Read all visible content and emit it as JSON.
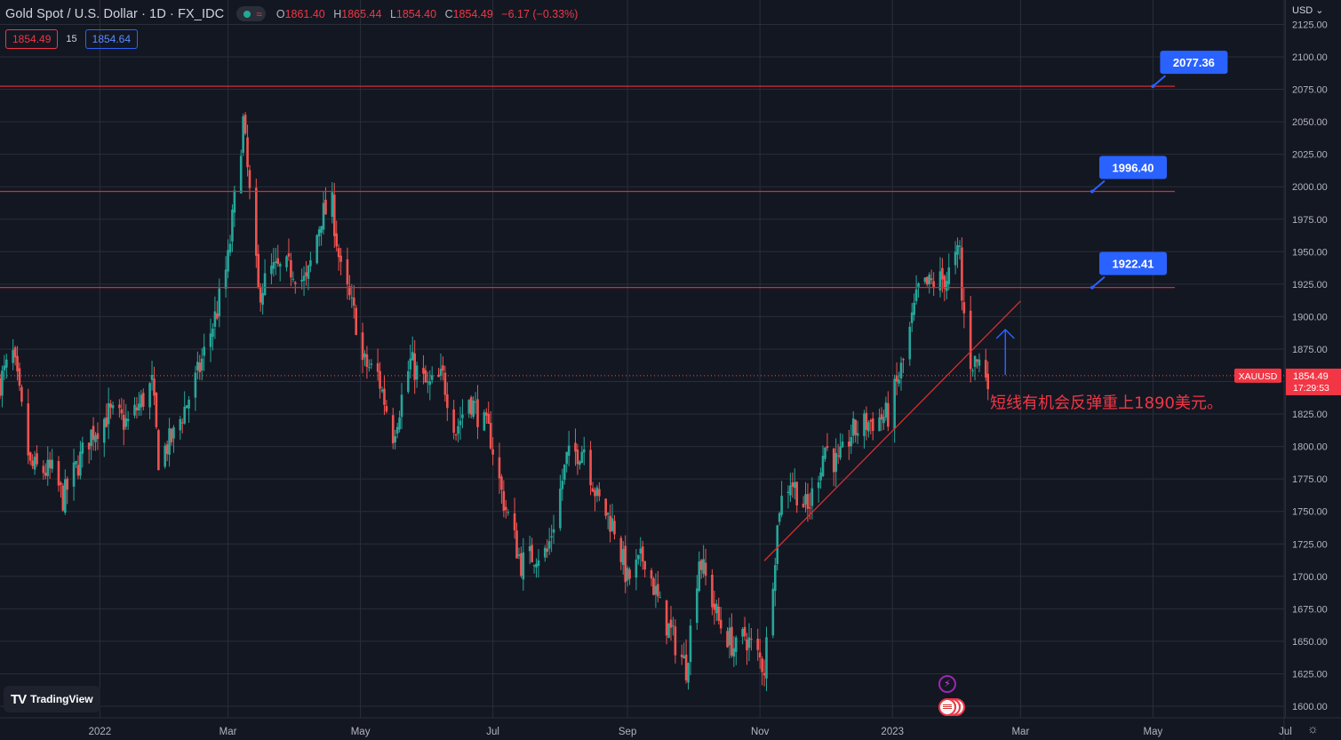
{
  "header": {
    "symbol": "Gold Spot / U.S. Dollar · 1D · FX_IDC",
    "ohlc": {
      "o_label": "O",
      "o": "1861.40",
      "h_label": "H",
      "h": "1865.44",
      "l_label": "L",
      "l": "1854.40",
      "c_label": "C",
      "c": "1854.49",
      "change": "−6.17 (−0.33%)"
    },
    "sell_price": "1854.49",
    "spread": "15",
    "buy_price": "1854.64",
    "currency": "USD"
  },
  "branding": {
    "logo_text": "TradingView"
  },
  "colors": {
    "up": "#26a69a",
    "down": "#ef5350",
    "bg": "#131722",
    "grid": "#2a2e39",
    "level_line": "#d32f2f",
    "callout": "#2962ff",
    "annotation": "#f23645"
  },
  "chart_data": {
    "type": "candlestick",
    "symbol_label": "XAUUSD",
    "last_price": 1854.49,
    "countdown": "17:29:53",
    "ylim": [
      1600,
      2125
    ],
    "yticks": [
      "2125.00",
      "2100.00",
      "2075.00",
      "2050.00",
      "2025.00",
      "2000.00",
      "1975.00",
      "1950.00",
      "1925.00",
      "1900.00",
      "1875.00",
      "1850.00",
      "1825.00",
      "1800.00",
      "1775.00",
      "1750.00",
      "1725.00",
      "1700.00",
      "1675.00",
      "1650.00",
      "1625.00",
      "1600.00"
    ],
    "xlim": [
      "2021-11-16",
      "2023-07-27"
    ],
    "xticks": [
      {
        "label": "2022",
        "date": "2022-01-01"
      },
      {
        "label": "Mar",
        "date": "2022-03-01"
      },
      {
        "label": "May",
        "date": "2022-05-01"
      },
      {
        "label": "Jul",
        "date": "2022-07-01"
      },
      {
        "label": "Sep",
        "date": "2022-09-01"
      },
      {
        "label": "Nov",
        "date": "2022-11-01"
      },
      {
        "label": "2023",
        "date": "2023-01-01"
      },
      {
        "label": "Mar",
        "date": "2023-03-01"
      },
      {
        "label": "May",
        "date": "2023-05-01"
      },
      {
        "label": "Jul",
        "date": "2023-07-01"
      }
    ],
    "anchors": [
      {
        "date": "2021-11-16",
        "price": 1850
      },
      {
        "date": "2021-11-22",
        "price": 1870
      },
      {
        "date": "2021-11-30",
        "price": 1784
      },
      {
        "date": "2021-12-10",
        "price": 1780
      },
      {
        "date": "2021-12-15",
        "price": 1760
      },
      {
        "date": "2021-12-28",
        "price": 1810
      },
      {
        "date": "2022-01-05",
        "price": 1825
      },
      {
        "date": "2022-01-14",
        "price": 1818
      },
      {
        "date": "2022-01-25",
        "price": 1848
      },
      {
        "date": "2022-01-28",
        "price": 1791
      },
      {
        "date": "2022-02-04",
        "price": 1808
      },
      {
        "date": "2022-02-15",
        "price": 1855
      },
      {
        "date": "2022-02-24",
        "price": 1905
      },
      {
        "date": "2022-03-01",
        "price": 1943
      },
      {
        "date": "2022-03-08",
        "price": 2050
      },
      {
        "date": "2022-03-15",
        "price": 1918
      },
      {
        "date": "2022-03-21",
        "price": 1935
      },
      {
        "date": "2022-03-31",
        "price": 1937
      },
      {
        "date": "2022-04-06",
        "price": 1925
      },
      {
        "date": "2022-04-13",
        "price": 1978
      },
      {
        "date": "2022-04-18",
        "price": 1985
      },
      {
        "date": "2022-04-22",
        "price": 1934
      },
      {
        "date": "2022-04-29",
        "price": 1896
      },
      {
        "date": "2022-05-02",
        "price": 1865
      },
      {
        "date": "2022-05-09",
        "price": 1855
      },
      {
        "date": "2022-05-16",
        "price": 1810
      },
      {
        "date": "2022-05-24",
        "price": 1865
      },
      {
        "date": "2022-06-01",
        "price": 1845
      },
      {
        "date": "2022-06-08",
        "price": 1853
      },
      {
        "date": "2022-06-14",
        "price": 1813
      },
      {
        "date": "2022-06-20",
        "price": 1838
      },
      {
        "date": "2022-06-30",
        "price": 1807
      },
      {
        "date": "2022-07-05",
        "price": 1764
      },
      {
        "date": "2022-07-14",
        "price": 1710
      },
      {
        "date": "2022-07-21",
        "price": 1718
      },
      {
        "date": "2022-07-26",
        "price": 1718
      },
      {
        "date": "2022-08-04",
        "price": 1790
      },
      {
        "date": "2022-08-12",
        "price": 1800
      },
      {
        "date": "2022-08-18",
        "price": 1760
      },
      {
        "date": "2022-08-26",
        "price": 1738
      },
      {
        "date": "2022-09-01",
        "price": 1697
      },
      {
        "date": "2022-09-09",
        "price": 1716
      },
      {
        "date": "2022-09-16",
        "price": 1675
      },
      {
        "date": "2022-09-28",
        "price": 1630
      },
      {
        "date": "2022-10-04",
        "price": 1715
      },
      {
        "date": "2022-10-13",
        "price": 1665
      },
      {
        "date": "2022-10-21",
        "price": 1643
      },
      {
        "date": "2022-10-25",
        "price": 1655
      },
      {
        "date": "2022-11-03",
        "price": 1630
      },
      {
        "date": "2022-11-10",
        "price": 1755
      },
      {
        "date": "2022-11-15",
        "price": 1775
      },
      {
        "date": "2022-11-23",
        "price": 1750
      },
      {
        "date": "2022-12-01",
        "price": 1800
      },
      {
        "date": "2022-12-07",
        "price": 1785
      },
      {
        "date": "2022-12-13",
        "price": 1810
      },
      {
        "date": "2022-12-20",
        "price": 1818
      },
      {
        "date": "2022-12-30",
        "price": 1824
      },
      {
        "date": "2023-01-06",
        "price": 1865
      },
      {
        "date": "2023-01-13",
        "price": 1920
      },
      {
        "date": "2023-01-20",
        "price": 1926
      },
      {
        "date": "2023-01-26",
        "price": 1930
      },
      {
        "date": "2023-02-01",
        "price": 1950
      },
      {
        "date": "2023-02-02",
        "price": 1912
      },
      {
        "date": "2023-02-06",
        "price": 1866
      },
      {
        "date": "2023-02-10",
        "price": 1865
      },
      {
        "date": "2023-02-14",
        "price": 1855
      }
    ],
    "levels": [
      {
        "price": 2077.36,
        "label": "2077.36",
        "callout_date": "2023-05-01"
      },
      {
        "price": 1996.4,
        "label": "1996.40",
        "callout_date": "2023-04-03"
      },
      {
        "price": 1922.41,
        "label": "1922.41",
        "callout_date": "2023-04-03"
      }
    ],
    "trendline": [
      {
        "date": "2022-11-03",
        "price": 1712
      },
      {
        "date": "2023-03-01",
        "price": 1912
      }
    ],
    "arrow": {
      "date": "2023-02-22",
      "from": 1855,
      "to": 1890
    },
    "annotation": {
      "text": "短线有机会反弹重上1890美元。",
      "date": "2023-02-15",
      "price": 1839
    }
  }
}
